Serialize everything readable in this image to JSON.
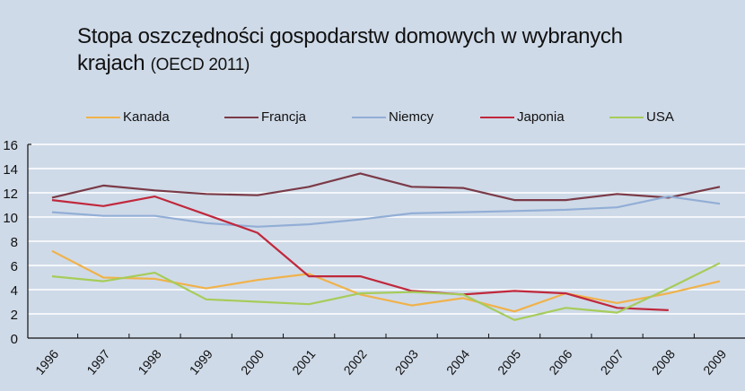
{
  "title": {
    "main": "Stopa oszczędności gospodarstw domowych w wybranych",
    "line2": "krajach",
    "source": "(OECD 2011)"
  },
  "legend": [
    {
      "name": "Kanada",
      "color": "#f0b24a"
    },
    {
      "name": "Francja",
      "color": "#7a3a47"
    },
    {
      "name": "Niemcy",
      "color": "#92aed6"
    },
    {
      "name": "Japonia",
      "color": "#c0283c"
    },
    {
      "name": "USA",
      "color": "#a6cc5a"
    }
  ],
  "chart_data": {
    "type": "line",
    "title": "Stopa oszczędności gospodarstw domowych w wybranych krajach (OECD 2011)",
    "xlabel": "",
    "ylabel": "",
    "ylim": [
      0,
      16
    ],
    "yticks": [
      0,
      2,
      4,
      6,
      8,
      10,
      12,
      14,
      16
    ],
    "grid": true,
    "legend_position": "top",
    "categories": [
      "1996",
      "1997",
      "1998",
      "1999",
      "2000",
      "2001",
      "2002",
      "2003",
      "2004",
      "2005",
      "2006",
      "2007",
      "2008",
      "2009"
    ],
    "series": [
      {
        "name": "Kanada",
        "color": "#f0b24a",
        "values": [
          7.2,
          5.0,
          4.9,
          4.1,
          4.8,
          5.3,
          3.6,
          2.7,
          3.3,
          2.2,
          3.7,
          2.9,
          3.7,
          4.7
        ]
      },
      {
        "name": "Francja",
        "color": "#7a3a47",
        "values": [
          11.6,
          12.6,
          12.2,
          11.9,
          11.8,
          12.5,
          13.6,
          12.5,
          12.4,
          11.4,
          11.4,
          11.9,
          11.6,
          12.5
        ]
      },
      {
        "name": "Niemcy",
        "color": "#92aed6",
        "values": [
          10.4,
          10.1,
          10.1,
          9.5,
          9.2,
          9.4,
          9.8,
          10.3,
          10.4,
          10.5,
          10.6,
          10.8,
          11.7,
          11.1
        ]
      },
      {
        "name": "Japonia",
        "color": "#c0283c",
        "values": [
          11.4,
          10.9,
          11.7,
          10.2,
          8.7,
          5.1,
          5.1,
          3.9,
          3.6,
          3.9,
          3.7,
          2.5,
          2.3,
          null
        ]
      },
      {
        "name": "USA",
        "color": "#a6cc5a",
        "values": [
          5.1,
          4.7,
          5.4,
          3.2,
          3.0,
          2.8,
          3.7,
          3.8,
          3.6,
          1.5,
          2.5,
          2.1,
          4.1,
          6.2
        ]
      }
    ]
  }
}
